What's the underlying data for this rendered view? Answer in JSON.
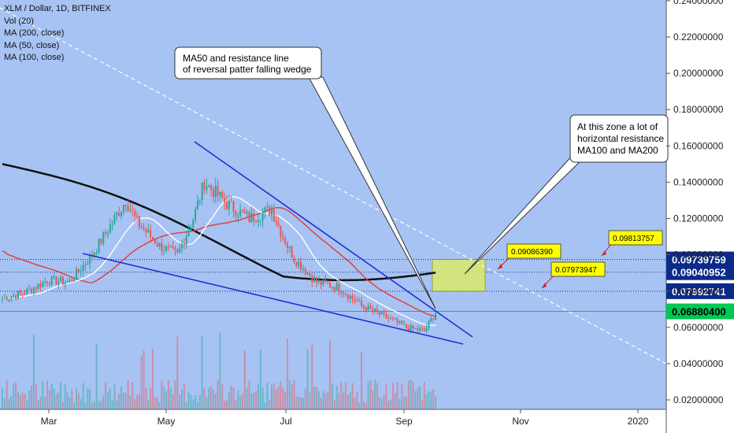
{
  "colors": {
    "background": "#a7c3f3",
    "axis_background": "#ffffff",
    "candle_up": "#26a69a",
    "candle_down": "#ef5350",
    "ma200": "#111111",
    "ma50": "#ffffff",
    "ma100": "#e53935",
    "wedge": "#1f2fd6",
    "resistance_dash": "#ffffff",
    "zone": "#d9ea6a",
    "label_box": "#ffff00",
    "current_price": "#00c853",
    "price_tag": "#0b2a8a"
  },
  "legend": [
    "XLM / Dollar, 1D, BITFINEX",
    "Vol (20)",
    "MA (200, close)",
    "MA (50, close)",
    "MA (100, close)"
  ],
  "chart_data": {
    "type": "candlestick",
    "symbol": "XLM / Dollar",
    "interval": "1D",
    "exchange": "BITFINEX",
    "x_tick_labels": [
      "Mar",
      "May",
      "Jul",
      "Sep",
      "Nov",
      "2020"
    ],
    "y_tick_labels": [
      "0.02000000",
      "0.04000000",
      "0.06000000",
      "0.08000000",
      "0.10000000",
      "0.12000000",
      "0.14000000",
      "0.16000000",
      "0.18000000",
      "0.20000000",
      "0.22000000",
      "0.24000000"
    ],
    "ylim": [
      0.02,
      0.24
    ],
    "price_levels": [
      {
        "value": 0.09739759,
        "label": "0.09739759",
        "style": "dotted"
      },
      {
        "value": 0.09040952,
        "label": "0.09040952",
        "style": "dotted"
      },
      {
        "value": 0.07992741,
        "label": "0.07992741",
        "style": "dotted"
      },
      {
        "value": 0.068804,
        "label": "0.06880400",
        "style": "current"
      }
    ],
    "annotations": [
      {
        "text": "MA50 and resistance line\nof reversal patter falling wedge"
      },
      {
        "text": "At this zone a lot of\nhorizontal resistance\nMA100 and MA200"
      }
    ],
    "price_labels": [
      "0.09086390",
      "0.07973947",
      "0.09813757"
    ],
    "series_hint": {
      "close_anchors": [
        [
          0,
          0.076
        ],
        [
          10,
          0.079
        ],
        [
          20,
          0.086
        ],
        [
          30,
          0.085
        ],
        [
          40,
          0.1
        ],
        [
          50,
          0.12
        ],
        [
          55,
          0.13
        ],
        [
          60,
          0.118
        ],
        [
          70,
          0.105
        ],
        [
          78,
          0.1
        ],
        [
          85,
          0.12
        ],
        [
          90,
          0.14
        ],
        [
          100,
          0.128
        ],
        [
          110,
          0.12
        ],
        [
          120,
          0.125
        ],
        [
          125,
          0.11
        ],
        [
          130,
          0.098
        ],
        [
          140,
          0.085
        ],
        [
          150,
          0.082
        ],
        [
          160,
          0.072
        ],
        [
          170,
          0.066
        ],
        [
          180,
          0.06
        ],
        [
          188,
          0.058
        ],
        [
          193,
          0.068
        ]
      ]
    }
  }
}
